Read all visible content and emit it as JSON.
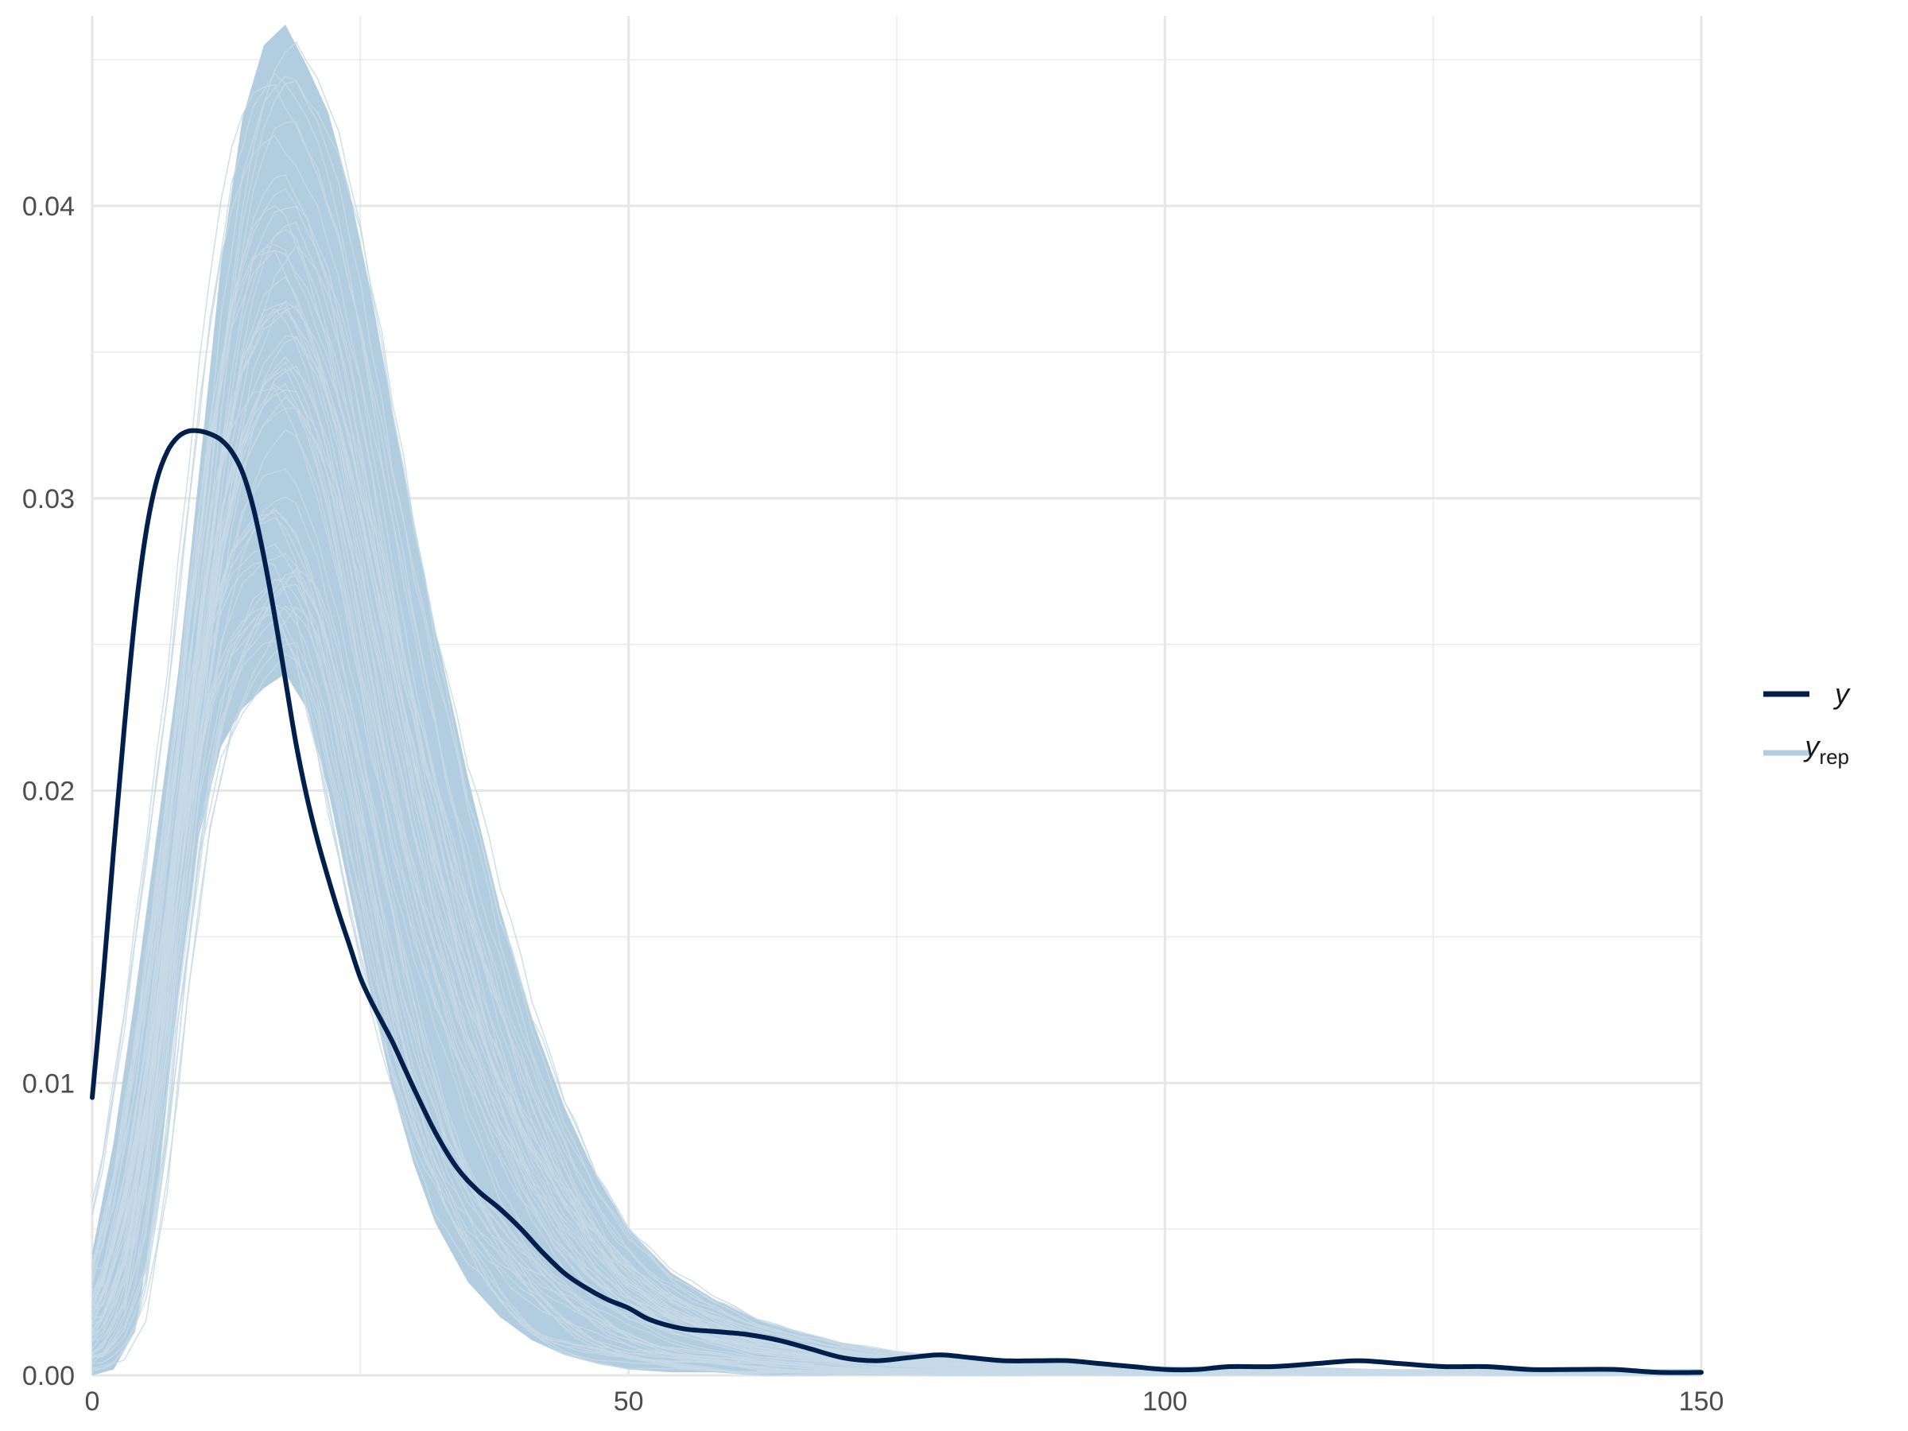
{
  "chart_data": {
    "type": "line",
    "title": "",
    "xlabel": "",
    "ylabel": "",
    "xlim": [
      0,
      150
    ],
    "ylim": [
      0,
      0.0465
    ],
    "x_ticks": [
      0,
      50,
      100,
      150
    ],
    "x_tick_labels": [
      "0",
      "50",
      "100",
      "150"
    ],
    "y_ticks": [
      0,
      0.01,
      0.02,
      0.03,
      0.04
    ],
    "y_tick_labels": [
      "0.00",
      "0.01",
      "0.02",
      "0.03",
      "0.04"
    ],
    "grid": true,
    "legend_position": "right",
    "legend": [
      {
        "label": "y",
        "subscript": "",
        "color": "#011f4b"
      },
      {
        "label": "y",
        "subscript": "rep",
        "color": "#b3cde0"
      }
    ],
    "series": [
      {
        "name": "y",
        "role": "observed",
        "color": "#011f4b",
        "x": [
          0,
          1,
          2,
          3,
          4,
          5,
          6,
          7,
          8,
          9,
          10,
          11,
          12,
          13,
          14,
          15,
          16,
          17,
          18,
          19,
          20,
          21,
          22,
          23,
          24,
          25,
          26,
          27,
          28,
          29,
          30,
          32,
          34,
          36,
          38,
          40,
          42,
          44,
          46,
          48,
          50,
          52,
          55,
          58,
          61,
          64,
          67,
          70,
          73,
          76,
          79,
          82,
          85,
          88,
          91,
          94,
          97,
          100,
          103,
          106,
          110,
          114,
          118,
          122,
          126,
          130,
          134,
          138,
          142,
          146,
          150
        ],
        "values": [
          0.0095,
          0.0135,
          0.018,
          0.0222,
          0.026,
          0.0288,
          0.0306,
          0.0316,
          0.0321,
          0.0323,
          0.0323,
          0.0322,
          0.032,
          0.0316,
          0.0309,
          0.0297,
          0.028,
          0.026,
          0.0238,
          0.0216,
          0.0198,
          0.0183,
          0.017,
          0.0158,
          0.0147,
          0.0136,
          0.0128,
          0.0121,
          0.0114,
          0.0106,
          0.0098,
          0.0083,
          0.0071,
          0.0063,
          0.0057,
          0.005,
          0.0042,
          0.0035,
          0.003,
          0.0026,
          0.0023,
          0.0019,
          0.0016,
          0.0015,
          0.0014,
          0.0012,
          0.0009,
          0.0006,
          0.0005,
          0.0006,
          0.0007,
          0.0006,
          0.0005,
          0.0005,
          0.0005,
          0.0004,
          0.0003,
          0.0002,
          0.0002,
          0.0003,
          0.0003,
          0.0004,
          0.0005,
          0.0004,
          0.0003,
          0.0003,
          0.0002,
          0.0002,
          0.0002,
          0.0001,
          0.0001
        ]
      },
      {
        "name": "y_rep",
        "role": "replicated",
        "color": "#b3cde0",
        "description_band": {
          "x": [
            0,
            2,
            4,
            6,
            8,
            10,
            12,
            14,
            16,
            18,
            20,
            22,
            24,
            26,
            28,
            30,
            32,
            35,
            38,
            41,
            44,
            47,
            50,
            54,
            58,
            62,
            66,
            70,
            75,
            80,
            90,
            100,
            110,
            120,
            130,
            140,
            150
          ],
          "upper": [
            0.0042,
            0.008,
            0.013,
            0.0185,
            0.024,
            0.031,
            0.038,
            0.043,
            0.0455,
            0.0462,
            0.0448,
            0.0432,
            0.0405,
            0.037,
            0.033,
            0.0292,
            0.0255,
            0.0205,
            0.016,
            0.0122,
            0.0092,
            0.0068,
            0.005,
            0.0035,
            0.0026,
            0.0019,
            0.0015,
            0.0011,
            0.0008,
            0.0006,
            0.0004,
            0.0003,
            0.0003,
            0.0002,
            0.0002,
            0.0002,
            0.0002
          ],
          "lower": [
            0.0,
            0.0002,
            0.0015,
            0.006,
            0.013,
            0.0185,
            0.0215,
            0.0228,
            0.0235,
            0.024,
            0.0228,
            0.02,
            0.0165,
            0.013,
            0.0098,
            0.0072,
            0.0052,
            0.0032,
            0.002,
            0.0012,
            0.0007,
            0.0004,
            0.0002,
            0.0001,
            0.0001,
            0.0,
            0.0,
            0.0,
            0.0,
            0.0,
            0.0,
            0.0,
            0.0,
            0.0,
            0.0,
            0.0,
            0.0
          ]
        }
      }
    ]
  }
}
